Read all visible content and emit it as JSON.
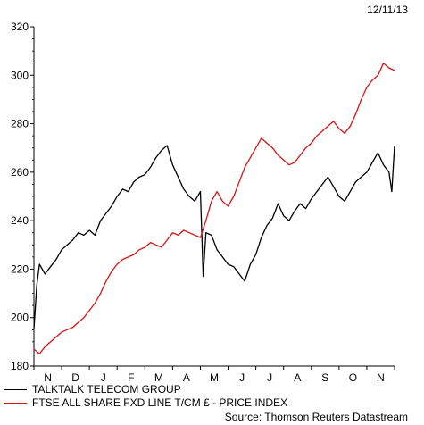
{
  "date_label": "12/11/13",
  "source": "Source: Thomson Reuters Datastream",
  "colors": {
    "series1": "#000000",
    "series2": "#d91414",
    "axis": "#000000"
  },
  "chart_data": {
    "type": "line",
    "title": "",
    "xlabel": "",
    "ylabel": "",
    "ylim": [
      180,
      320
    ],
    "y_ticks": [
      180,
      200,
      220,
      240,
      260,
      280,
      300,
      320
    ],
    "x_tick_labels": [
      "N",
      "D",
      "J",
      "F",
      "M",
      "A",
      "M",
      "J",
      "J",
      "A",
      "S",
      "O",
      "N"
    ],
    "x_tick_positions": [
      0.5,
      1.5,
      2.5,
      3.5,
      4.5,
      5.5,
      6.5,
      7.5,
      8.5,
      9.5,
      10.5,
      11.5,
      12.5
    ],
    "xlim": [
      0,
      13
    ],
    "legend_position": "bottom-left",
    "grid": false,
    "series": [
      {
        "name": "TALKTALK TELECOM GROUP",
        "color": "#000000",
        "x": [
          0.0,
          0.1,
          0.2,
          0.4,
          0.6,
          0.8,
          1.0,
          1.2,
          1.4,
          1.6,
          1.8,
          2.0,
          2.2,
          2.4,
          2.6,
          2.8,
          3.0,
          3.2,
          3.4,
          3.6,
          3.8,
          4.0,
          4.2,
          4.4,
          4.6,
          4.8,
          5.0,
          5.2,
          5.4,
          5.6,
          5.8,
          6.0,
          6.1,
          6.2,
          6.4,
          6.6,
          6.8,
          7.0,
          7.2,
          7.4,
          7.6,
          7.8,
          8.0,
          8.2,
          8.4,
          8.6,
          8.8,
          9.0,
          9.2,
          9.4,
          9.6,
          9.8,
          10.0,
          10.2,
          10.4,
          10.6,
          10.8,
          11.0,
          11.2,
          11.4,
          11.6,
          11.8,
          12.0,
          12.2,
          12.4,
          12.6,
          12.8,
          12.9,
          13.0
        ],
        "values": [
          195,
          213,
          222,
          218,
          221,
          224,
          228,
          230,
          232,
          235,
          234,
          236,
          234,
          240,
          243,
          246,
          250,
          253,
          252,
          256,
          258,
          259,
          262,
          266,
          269,
          271,
          263,
          258,
          253,
          250,
          248,
          252,
          217,
          235,
          234,
          228,
          225,
          222,
          221,
          218,
          215,
          222,
          226,
          233,
          238,
          241,
          247,
          242,
          240,
          244,
          247,
          245,
          249,
          252,
          255,
          258,
          254,
          250,
          248,
          252,
          256,
          258,
          260,
          264,
          268,
          263,
          260,
          252,
          271
        ]
      },
      {
        "name": "FTSE ALL SHARE FXD LINE T/CM £ - PRICE INDEX",
        "color": "#d91414",
        "x": [
          0.0,
          0.2,
          0.4,
          0.6,
          0.8,
          1.0,
          1.2,
          1.4,
          1.6,
          1.8,
          2.0,
          2.2,
          2.4,
          2.6,
          2.8,
          3.0,
          3.2,
          3.4,
          3.6,
          3.8,
          4.0,
          4.2,
          4.4,
          4.6,
          4.8,
          5.0,
          5.2,
          5.4,
          5.6,
          5.8,
          6.0,
          6.2,
          6.4,
          6.6,
          6.8,
          7.0,
          7.2,
          7.4,
          7.6,
          7.8,
          8.0,
          8.2,
          8.4,
          8.6,
          8.8,
          9.0,
          9.2,
          9.4,
          9.6,
          9.8,
          10.0,
          10.2,
          10.4,
          10.6,
          10.8,
          11.0,
          11.2,
          11.4,
          11.6,
          11.8,
          12.0,
          12.2,
          12.4,
          12.6,
          12.8,
          13.0
        ],
        "values": [
          187,
          185,
          188,
          190,
          192,
          194,
          195,
          196,
          198,
          200,
          203,
          206,
          210,
          215,
          219,
          222,
          224,
          225,
          226,
          228,
          229,
          231,
          230,
          229,
          232,
          235,
          234,
          236,
          235,
          234,
          233,
          240,
          248,
          252,
          248,
          246,
          250,
          256,
          262,
          266,
          270,
          274,
          272,
          270,
          267,
          265,
          263,
          264,
          267,
          270,
          272,
          275,
          277,
          279,
          281,
          278,
          276,
          279,
          284,
          290,
          295,
          298,
          300,
          305,
          303,
          302
        ]
      }
    ]
  }
}
